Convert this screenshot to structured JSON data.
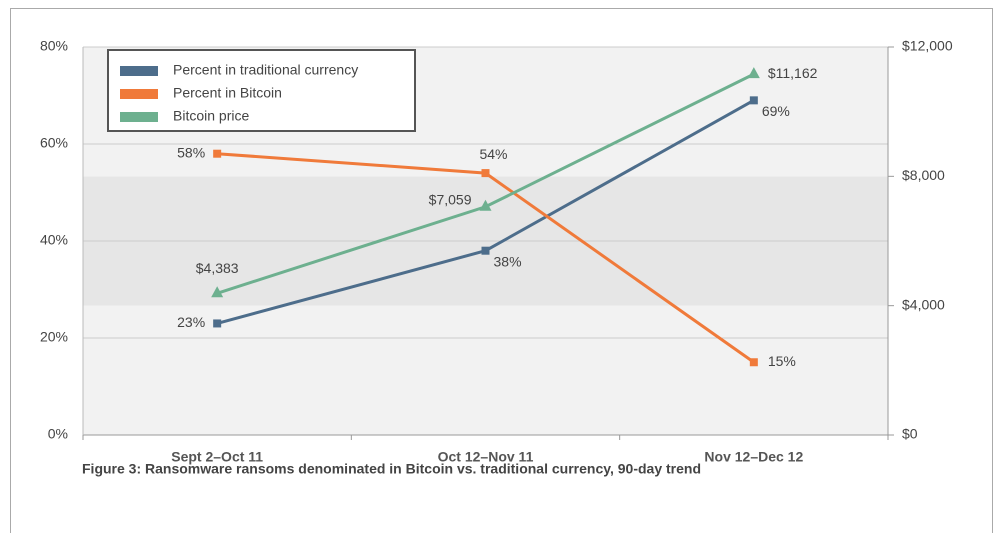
{
  "chart_data": {
    "type": "line",
    "caption": "Figure 3: Ransomware ransoms denominated in Bitcoin vs. traditional currency, 90-day trend",
    "categories": [
      "Sept 2–Oct 11",
      "Oct 12–Nov 11",
      "Nov 12–Dec 12"
    ],
    "series": [
      {
        "name": "Percent in traditional currency",
        "color": "#4d6d8b",
        "marker": "square",
        "values": [
          23,
          38,
          69
        ],
        "value_labels": [
          "23%",
          "38%",
          "69%"
        ]
      },
      {
        "name": "Percent in Bitcoin",
        "color": "#f07a3a",
        "marker": "square",
        "values": [
          58,
          54,
          15
        ],
        "value_labels": [
          "58%",
          "54%",
          "15%"
        ]
      },
      {
        "name": "Bitcoin price",
        "color": "#6db08f",
        "marker": "triangle",
        "axis": "y2",
        "values": [
          4383,
          7059,
          11162
        ],
        "value_labels": [
          "$4,383",
          "$7,059",
          "$11,162"
        ]
      }
    ],
    "ylim": [
      0,
      80
    ],
    "yticks": [
      {
        "value": 0,
        "label": "0%"
      },
      {
        "value": 20,
        "label": "20%"
      },
      {
        "value": 40,
        "label": "40%"
      },
      {
        "value": 60,
        "label": "60%"
      },
      {
        "value": 80,
        "label": "80%"
      }
    ],
    "y2lim": [
      0,
      12000
    ],
    "y2ticks": [
      {
        "value": 0,
        "label": "$0"
      },
      {
        "value": 4000,
        "label": "$4,000"
      },
      {
        "value": 8000,
        "label": "$8,000"
      },
      {
        "value": 12000,
        "label": "$12,000"
      }
    ],
    "grid": true,
    "legend": "upper left"
  }
}
